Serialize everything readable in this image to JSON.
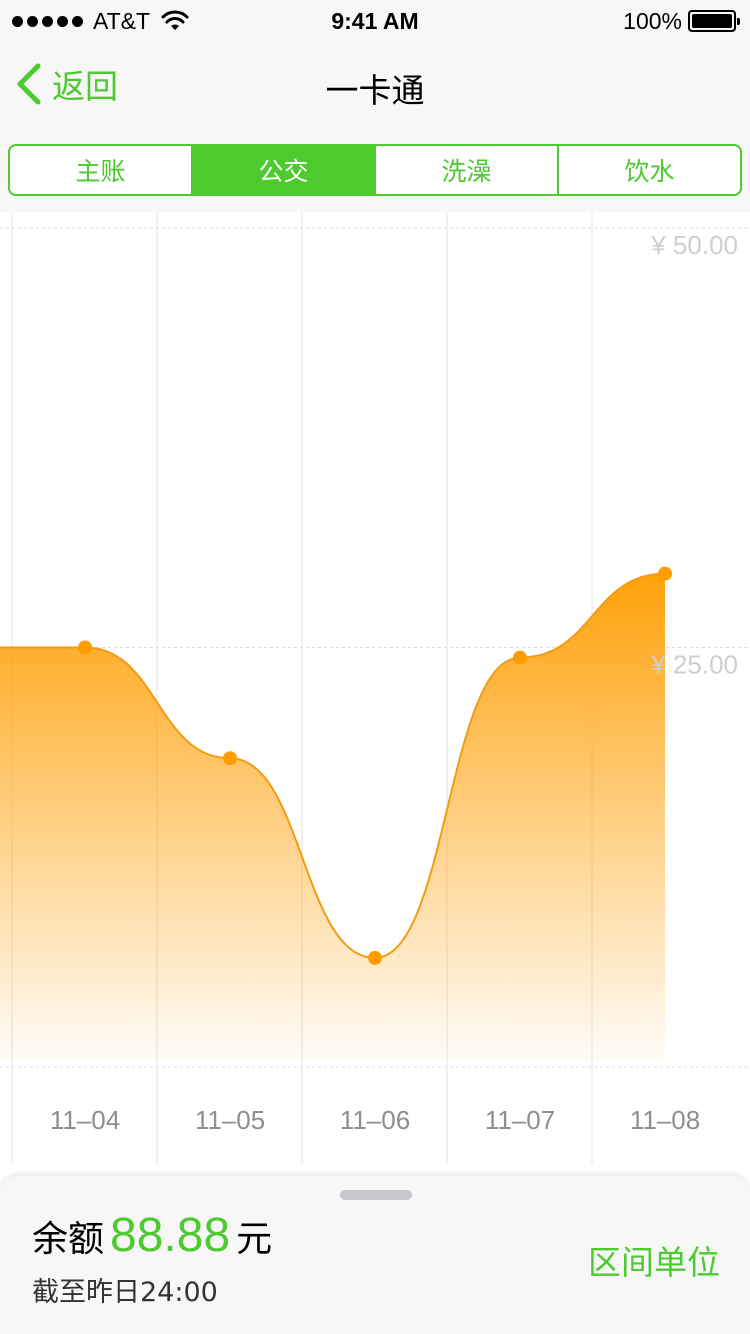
{
  "status_bar": {
    "carrier": "AT&T",
    "time": "9:41 AM",
    "battery": "100%",
    "icons": [
      "signal-dots-icon",
      "wifi-icon",
      "battery-icon"
    ]
  },
  "nav": {
    "back_label": "返回",
    "title": "一卡通"
  },
  "tabs": [
    {
      "label": "主账",
      "active": false
    },
    {
      "label": "公交",
      "active": true
    },
    {
      "label": "洗澡",
      "active": false
    },
    {
      "label": "饮水",
      "active": false
    }
  ],
  "chart_data": {
    "type": "area",
    "categories": [
      "11-04",
      "11-05",
      "11-06",
      "11-07",
      "11-08"
    ],
    "tick_labels": [
      "11–04",
      "11–05",
      "11–06",
      "11–07",
      "11–08"
    ],
    "series": [
      {
        "values": [
          25.0,
          18.4,
          6.5,
          24.4,
          29.4
        ]
      }
    ],
    "y_ticks": [
      {
        "value": 50,
        "label": "¥ 50.00"
      },
      {
        "value": 25,
        "label": "¥ 25.00"
      }
    ],
    "ylim": [
      0,
      50
    ],
    "grid": true,
    "colors": {
      "line": "#f39c12",
      "point": "#ff9d00",
      "fill": "#ffa10a"
    }
  },
  "sheet": {
    "balance_label": "余额",
    "balance_value": "88.88",
    "balance_unit": "元",
    "as_of": "截至昨日24:00",
    "range_button": "区间单位"
  },
  "colors": {
    "accent": "#4cca2e",
    "bar_bg": "#f7f7f7"
  }
}
